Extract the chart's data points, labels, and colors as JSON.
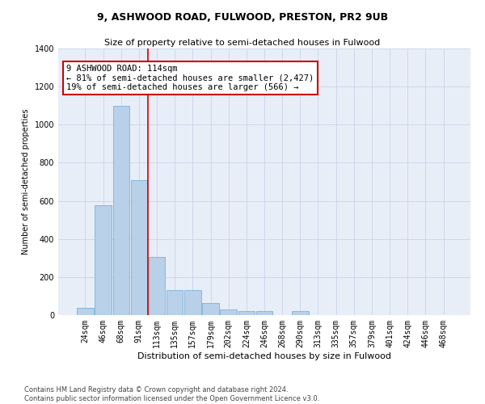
{
  "title": "9, ASHWOOD ROAD, FULWOOD, PRESTON, PR2 9UB",
  "subtitle": "Size of property relative to semi-detached houses in Fulwood",
  "xlabel": "Distribution of semi-detached houses by size in Fulwood",
  "ylabel": "Number of semi-detached properties",
  "footer_line1": "Contains HM Land Registry data © Crown copyright and database right 2024.",
  "footer_line2": "Contains public sector information licensed under the Open Government Licence v3.0.",
  "annotation_title": "9 ASHWOOD ROAD: 114sqm",
  "annotation_line1": "← 81% of semi-detached houses are smaller (2,427)",
  "annotation_line2": "19% of semi-detached houses are larger (566) →",
  "categories": [
    "24sqm",
    "46sqm",
    "68sqm",
    "91sqm",
    "113sqm",
    "135sqm",
    "157sqm",
    "179sqm",
    "202sqm",
    "224sqm",
    "246sqm",
    "268sqm",
    "290sqm",
    "313sqm",
    "335sqm",
    "357sqm",
    "379sqm",
    "401sqm",
    "424sqm",
    "446sqm",
    "468sqm"
  ],
  "values": [
    40,
    575,
    1100,
    710,
    305,
    130,
    130,
    65,
    30,
    20,
    20,
    0,
    20,
    0,
    0,
    0,
    0,
    0,
    0,
    0,
    0
  ],
  "bar_color": "#b8d0e8",
  "bar_edge_color": "#6aaad4",
  "vline_color": "#cc0000",
  "vline_x": 3.5,
  "annotation_box_facecolor": "#ffffff",
  "annotation_box_edgecolor": "#cc0000",
  "ylim": [
    0,
    1400
  ],
  "yticks": [
    0,
    200,
    400,
    600,
    800,
    1000,
    1200,
    1400
  ],
  "grid_color": "#c8d4e8",
  "background_color": "#e8eef8",
  "title_fontsize": 9,
  "subtitle_fontsize": 8,
  "xlabel_fontsize": 8,
  "ylabel_fontsize": 7,
  "tick_fontsize": 7,
  "annotation_fontsize": 7.5,
  "footer_fontsize": 6
}
